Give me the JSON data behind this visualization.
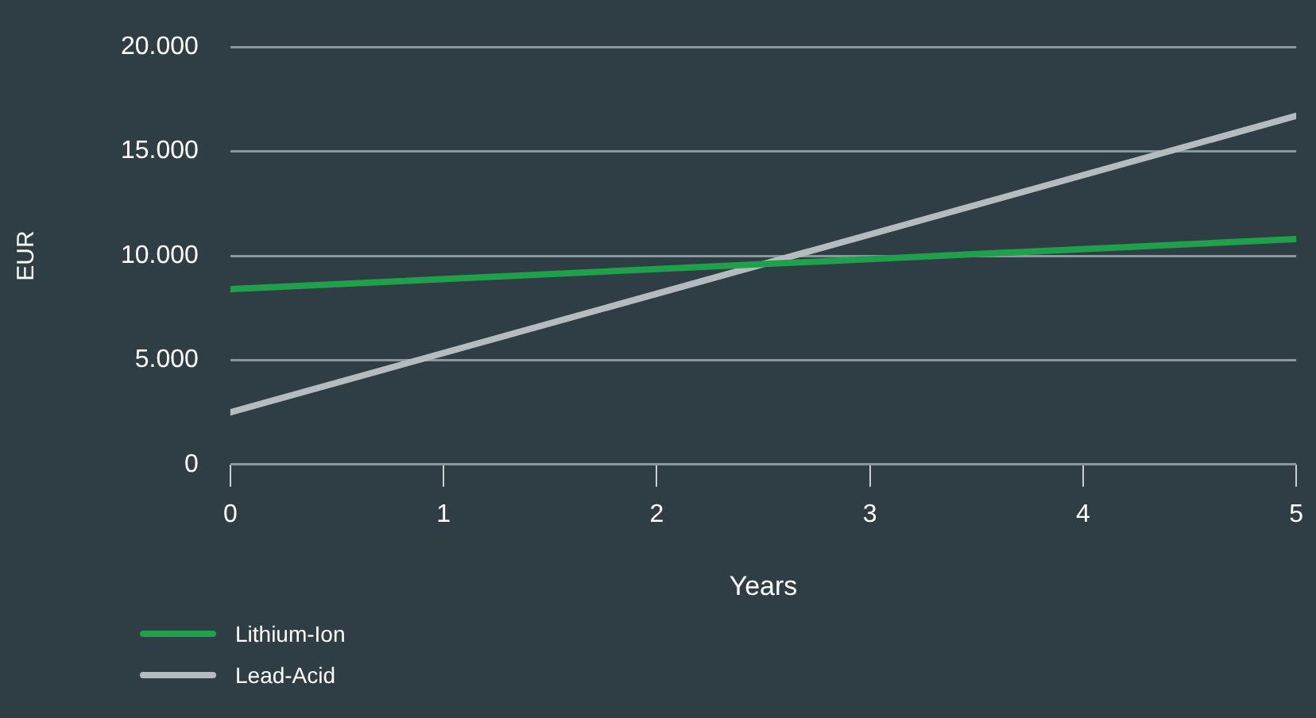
{
  "chart_data": {
    "type": "line",
    "xlabel": "Years",
    "ylabel": "EUR",
    "x": [
      0,
      5
    ],
    "xlim": [
      0,
      5
    ],
    "xticks": [
      0,
      1,
      2,
      3,
      4,
      5
    ],
    "ylim": [
      0,
      20000
    ],
    "yticks": [
      {
        "value": 0,
        "label": "0"
      },
      {
        "value": 5000,
        "label": "5.000"
      },
      {
        "value": 10000,
        "label": "10.000"
      },
      {
        "value": 15000,
        "label": "15.000"
      },
      {
        "value": 20000,
        "label": "20.000"
      }
    ],
    "series": [
      {
        "name": "Lithium-Ion",
        "color": "#1fa04a",
        "values": [
          8400,
          10800
        ]
      },
      {
        "name": "Lead-Acid",
        "color": "#b4bcc0",
        "values": [
          2500,
          16700
        ]
      }
    ],
    "grid": "y",
    "legend": "bottom left",
    "marker": "none",
    "line_style": "solid"
  }
}
